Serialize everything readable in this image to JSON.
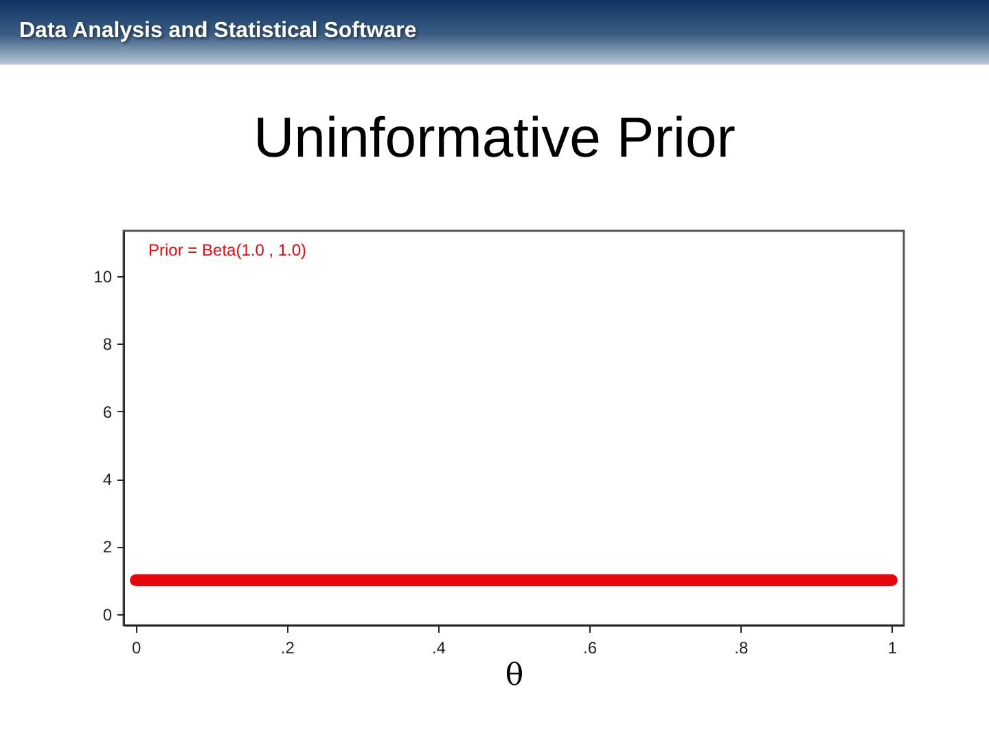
{
  "chart_data": {
    "type": "line",
    "title": "Uninformative Prior",
    "xlabel": "θ",
    "annotations": [
      "Data Analysis and Statistical Software"
    ],
    "x": [
      0,
      1
    ],
    "series": [
      {
        "name": "Prior = Beta(1.0 , 1.0)",
        "color": "#e8070d",
        "values": [
          1,
          1
        ]
      }
    ],
    "xlim": [
      -0.016,
      1.016
    ],
    "xticks": [
      0,
      {
        "value": 0.2,
        "label": ".2"
      },
      {
        "value": 0.4,
        "label": ".4"
      },
      {
        "value": 0.6,
        "label": ".6"
      },
      {
        "value": 0.8,
        "label": ".8"
      },
      1
    ],
    "ylim": [
      -0.33,
      11.34
    ],
    "yticks": [
      0,
      2,
      4,
      6,
      8,
      10
    ],
    "grid": false,
    "legend": "top left"
  }
}
